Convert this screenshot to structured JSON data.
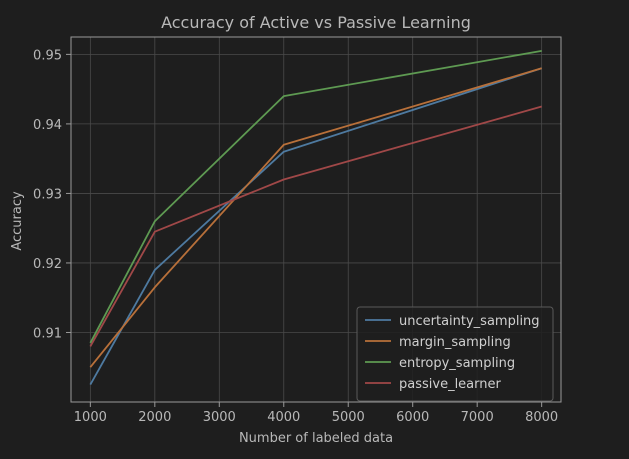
{
  "chart_data": {
    "type": "line",
    "title": "Accuracy of Active vs Passive Learning",
    "xlabel": "Number of labeled data",
    "ylabel": "Accuracy",
    "x": [
      1000,
      2000,
      4000,
      8000
    ],
    "xlim": [
      700,
      8300
    ],
    "ylim": [
      0.9,
      0.9525
    ],
    "xticks": [
      "1000",
      "2000",
      "3000",
      "4000",
      "5000",
      "6000",
      "7000",
      "8000"
    ],
    "yticks": [
      "0.91",
      "0.92",
      "0.93",
      "0.94",
      "0.95"
    ],
    "grid": true,
    "legend_position": "bottom-right",
    "series": [
      {
        "name": "uncertainty_sampling",
        "color": "#4e7aa0",
        "values": [
          0.9025,
          0.919,
          0.936,
          0.948
        ]
      },
      {
        "name": "margin_sampling",
        "color": "#b8703a",
        "values": [
          0.905,
          0.9165,
          0.937,
          0.948
        ]
      },
      {
        "name": "entropy_sampling",
        "color": "#5e9a52",
        "values": [
          0.9085,
          0.926,
          0.944,
          0.9505
        ]
      },
      {
        "name": "passive_learner",
        "color": "#a04848",
        "values": [
          0.908,
          0.9245,
          0.932,
          0.9425
        ]
      }
    ]
  }
}
